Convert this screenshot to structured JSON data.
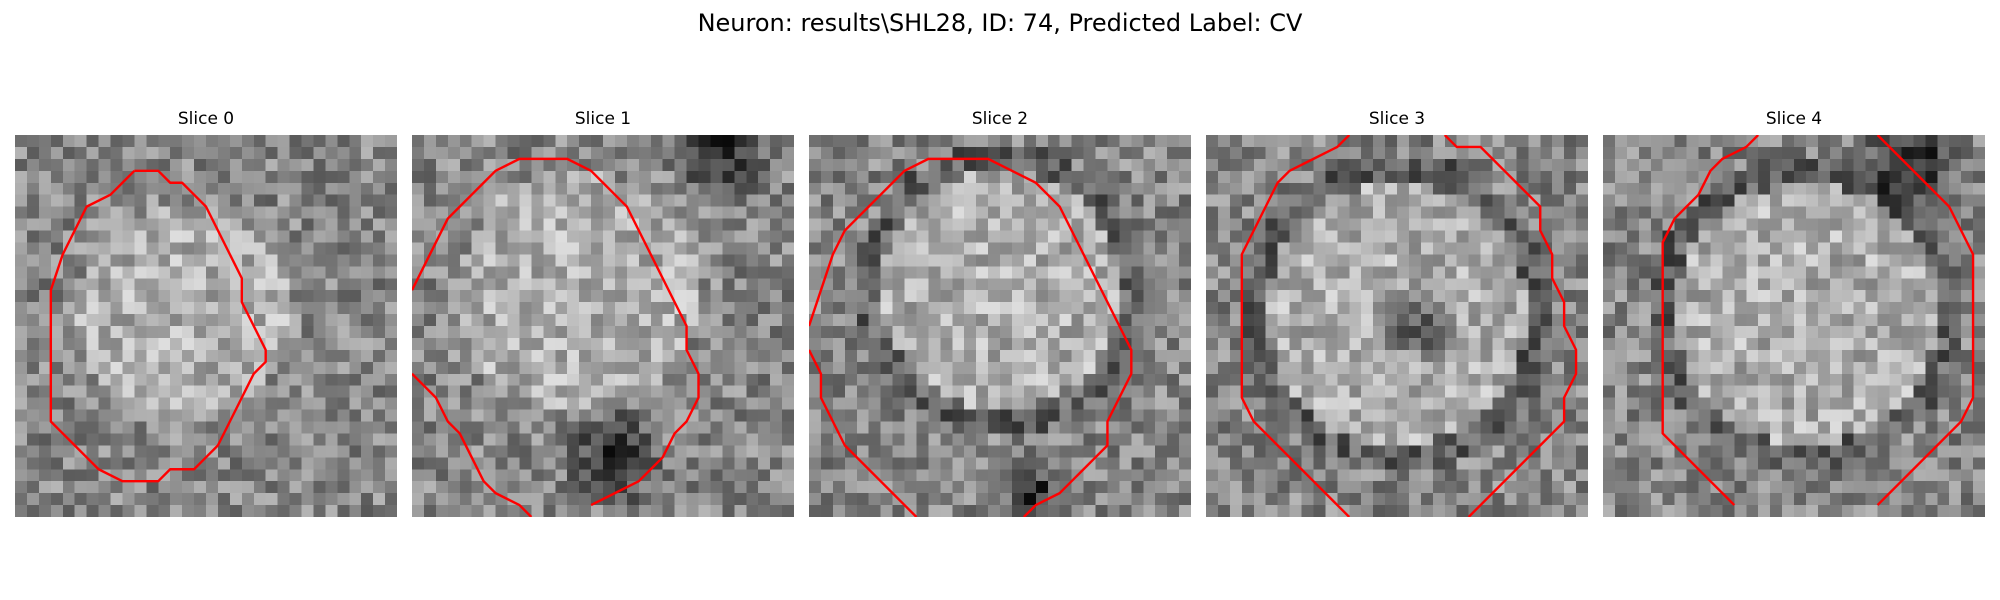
{
  "figure": {
    "title": "Neuron: results\\SHL28, ID: 74, Predicted Label: CV"
  },
  "colors": {
    "contour": "#ff0000",
    "background": "#ffffff"
  },
  "image_grid": {
    "cells": 32
  },
  "slices": [
    {
      "title": "Slice 0",
      "seed": 11,
      "contours": [
        [
          [
            10,
            3
          ],
          [
            12,
            3
          ],
          [
            13,
            4
          ],
          [
            14,
            4
          ],
          [
            15,
            5
          ],
          [
            16,
            6
          ],
          [
            17,
            8
          ],
          [
            18,
            10
          ],
          [
            19,
            12
          ],
          [
            19,
            14
          ],
          [
            20,
            16
          ],
          [
            21,
            18
          ],
          [
            21,
            19
          ],
          [
            20,
            20
          ],
          [
            19,
            22
          ],
          [
            18,
            24
          ],
          [
            17,
            26
          ],
          [
            16,
            27
          ],
          [
            15,
            28
          ],
          [
            13,
            28
          ],
          [
            12,
            29
          ],
          [
            9,
            29
          ],
          [
            7,
            28
          ],
          [
            6,
            27
          ],
          [
            5,
            26
          ],
          [
            4,
            25
          ],
          [
            3,
            24
          ],
          [
            3,
            22
          ],
          [
            3,
            20
          ],
          [
            3,
            17
          ],
          [
            3,
            13
          ],
          [
            4,
            10
          ],
          [
            5,
            8
          ],
          [
            6,
            6
          ],
          [
            8,
            5
          ],
          [
            9,
            4
          ],
          [
            10,
            3
          ]
        ]
      ]
    },
    {
      "title": "Slice 1",
      "seed": 27,
      "contours": [
        [
          [
            0,
            13
          ],
          [
            1,
            11
          ],
          [
            2,
            9
          ],
          [
            3,
            7
          ],
          [
            4,
            6
          ],
          [
            5,
            5
          ],
          [
            6,
            4
          ],
          [
            7,
            3
          ],
          [
            9,
            2
          ],
          [
            13,
            2
          ],
          [
            15,
            3
          ],
          [
            16,
            4
          ],
          [
            17,
            5
          ],
          [
            18,
            6
          ],
          [
            19,
            8
          ],
          [
            20,
            10
          ],
          [
            21,
            12
          ],
          [
            22,
            14
          ],
          [
            23,
            16
          ],
          [
            23,
            18
          ],
          [
            24,
            20
          ],
          [
            24,
            22
          ],
          [
            23,
            24
          ],
          [
            22,
            25
          ],
          [
            21,
            27
          ],
          [
            20,
            28
          ],
          [
            19,
            29
          ],
          [
            17,
            30
          ],
          [
            15,
            31
          ]
        ],
        [
          [
            0,
            20
          ],
          [
            1,
            21
          ],
          [
            2,
            22
          ],
          [
            3,
            24
          ],
          [
            4,
            25
          ],
          [
            5,
            27
          ],
          [
            6,
            29
          ],
          [
            7,
            30
          ],
          [
            9,
            31
          ],
          [
            10,
            32
          ]
        ]
      ]
    },
    {
      "title": "Slice 2",
      "seed": 43,
      "contours": [
        [
          [
            0,
            16
          ],
          [
            1,
            13
          ],
          [
            2,
            10
          ],
          [
            3,
            8
          ],
          [
            4,
            7
          ],
          [
            5,
            6
          ],
          [
            6,
            5
          ],
          [
            7,
            4
          ],
          [
            8,
            3
          ],
          [
            10,
            2
          ],
          [
            13,
            2
          ],
          [
            15,
            2
          ],
          [
            17,
            3
          ],
          [
            19,
            4
          ],
          [
            20,
            5
          ],
          [
            21,
            6
          ],
          [
            22,
            8
          ],
          [
            23,
            10
          ],
          [
            24,
            12
          ],
          [
            25,
            14
          ],
          [
            26,
            16
          ],
          [
            27,
            18
          ],
          [
            27,
            20
          ],
          [
            26,
            22
          ],
          [
            25,
            24
          ],
          [
            25,
            26
          ],
          [
            24,
            27
          ],
          [
            23,
            28
          ],
          [
            22,
            29
          ],
          [
            21,
            30
          ],
          [
            19,
            31
          ],
          [
            18,
            32
          ]
        ],
        [
          [
            0,
            18
          ],
          [
            1,
            20
          ],
          [
            1,
            22
          ],
          [
            2,
            24
          ],
          [
            3,
            26
          ],
          [
            4,
            27
          ],
          [
            5,
            28
          ],
          [
            6,
            29
          ],
          [
            7,
            30
          ],
          [
            8,
            31
          ],
          [
            9,
            32
          ]
        ]
      ]
    },
    {
      "title": "Slice 3",
      "seed": 59,
      "contours": [
        [
          [
            12,
            0
          ],
          [
            11,
            1
          ],
          [
            9,
            2
          ],
          [
            7,
            3
          ],
          [
            6,
            4
          ],
          [
            5,
            6
          ],
          [
            4,
            8
          ],
          [
            3,
            10
          ],
          [
            3,
            13
          ],
          [
            3,
            16
          ],
          [
            3,
            19
          ],
          [
            3,
            22
          ],
          [
            4,
            24
          ],
          [
            5,
            25
          ],
          [
            6,
            26
          ],
          [
            7,
            27
          ],
          [
            8,
            28
          ],
          [
            9,
            29
          ],
          [
            10,
            30
          ],
          [
            11,
            31
          ],
          [
            12,
            32
          ]
        ],
        [
          [
            20,
            0
          ],
          [
            21,
            1
          ],
          [
            23,
            1
          ],
          [
            24,
            2
          ],
          [
            25,
            3
          ],
          [
            26,
            4
          ],
          [
            27,
            5
          ],
          [
            28,
            6
          ],
          [
            28,
            8
          ],
          [
            29,
            10
          ],
          [
            29,
            12
          ],
          [
            30,
            14
          ],
          [
            30,
            16
          ],
          [
            31,
            18
          ],
          [
            31,
            20
          ],
          [
            30,
            22
          ],
          [
            30,
            24
          ],
          [
            29,
            25
          ],
          [
            28,
            26
          ],
          [
            27,
            27
          ],
          [
            26,
            28
          ],
          [
            25,
            29
          ],
          [
            24,
            30
          ],
          [
            23,
            31
          ],
          [
            22,
            32
          ]
        ]
      ]
    },
    {
      "title": "Slice 4",
      "seed": 83,
      "contours": [
        [
          [
            13,
            0
          ],
          [
            12,
            1
          ],
          [
            10,
            2
          ],
          [
            9,
            3
          ],
          [
            8,
            5
          ],
          [
            7,
            6
          ],
          [
            6,
            7
          ],
          [
            5,
            9
          ],
          [
            5,
            12
          ],
          [
            5,
            16
          ],
          [
            5,
            20
          ],
          [
            5,
            25
          ],
          [
            6,
            26
          ],
          [
            7,
            27
          ],
          [
            8,
            28
          ],
          [
            9,
            29
          ],
          [
            10,
            30
          ],
          [
            11,
            31
          ]
        ],
        [
          [
            23,
            0
          ],
          [
            24,
            1
          ],
          [
            25,
            2
          ],
          [
            26,
            3
          ],
          [
            27,
            4
          ],
          [
            28,
            5
          ],
          [
            29,
            6
          ],
          [
            30,
            8
          ],
          [
            31,
            10
          ],
          [
            31,
            14
          ],
          [
            31,
            18
          ],
          [
            31,
            22
          ],
          [
            30,
            24
          ],
          [
            29,
            25
          ],
          [
            28,
            26
          ],
          [
            27,
            27
          ],
          [
            26,
            28
          ],
          [
            25,
            29
          ],
          [
            24,
            30
          ],
          [
            23,
            31
          ]
        ]
      ]
    }
  ]
}
